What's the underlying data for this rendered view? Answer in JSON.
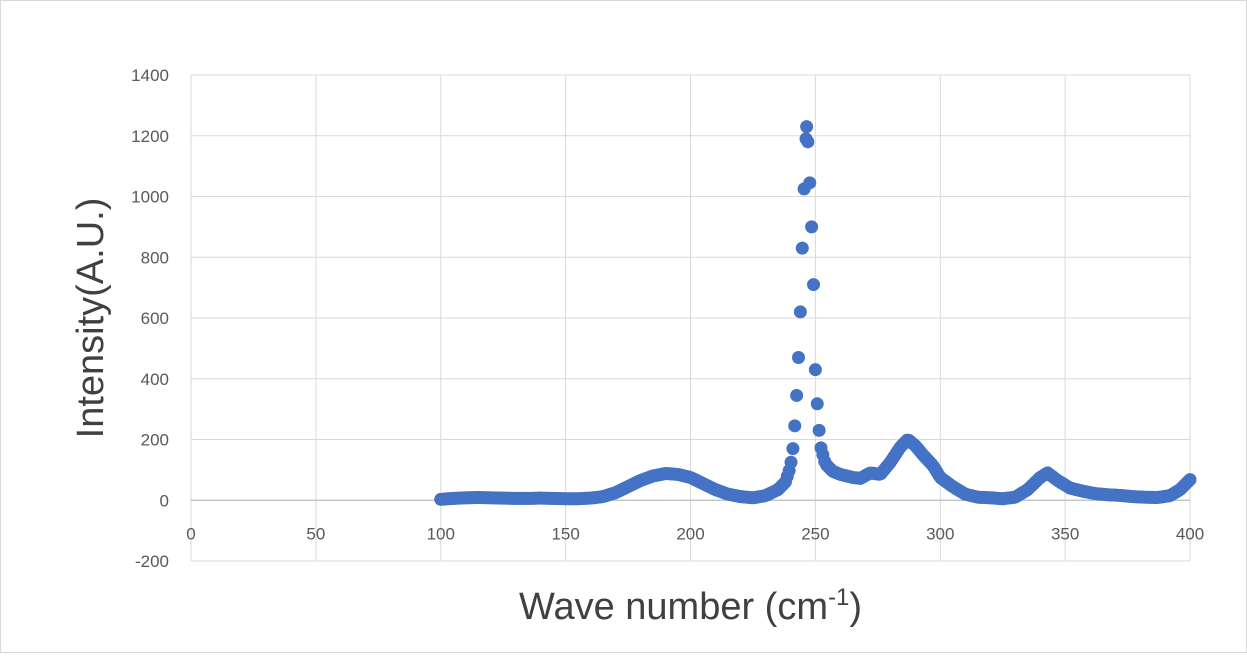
{
  "chart_data": {
    "type": "scatter",
    "title": "",
    "xlabel": {
      "base": "Wave number (cm",
      "sup": "-1",
      "end": ")"
    },
    "ylabel": "Intensity(A.U.)",
    "xlim": [
      0,
      400
    ],
    "ylim": [
      -200,
      1400
    ],
    "xticks": [
      0,
      50,
      100,
      150,
      200,
      250,
      300,
      350,
      400
    ],
    "yticks": [
      -200,
      0,
      200,
      400,
      600,
      800,
      1000,
      1200,
      1400
    ],
    "grid": true,
    "legend": "none",
    "marker_color": "#4472c4",
    "series": [
      {
        "points": [
          [
            100,
            3
          ],
          [
            105,
            6
          ],
          [
            110,
            8
          ],
          [
            115,
            9
          ],
          [
            120,
            8
          ],
          [
            125,
            7
          ],
          [
            130,
            6
          ],
          [
            135,
            6
          ],
          [
            140,
            7
          ],
          [
            145,
            6
          ],
          [
            150,
            5
          ],
          [
            155,
            5
          ],
          [
            160,
            7
          ],
          [
            165,
            12
          ],
          [
            170,
            25
          ],
          [
            175,
            45
          ],
          [
            180,
            65
          ],
          [
            185,
            80
          ],
          [
            190,
            88
          ],
          [
            195,
            85
          ],
          [
            200,
            75
          ],
          [
            205,
            55
          ],
          [
            210,
            35
          ],
          [
            215,
            20
          ],
          [
            220,
            12
          ],
          [
            225,
            8
          ],
          [
            230,
            15
          ],
          [
            235,
            35
          ],
          [
            238,
            60
          ],
          [
            240,
            110
          ],
          [
            241,
            170
          ],
          [
            242,
            270
          ],
          [
            243,
            420
          ],
          [
            244,
            620
          ],
          [
            245,
            900
          ],
          [
            246,
            1150
          ],
          [
            246.5,
            1230
          ],
          [
            247,
            1180
          ],
          [
            248,
            1000
          ],
          [
            249,
            800
          ],
          [
            249.5,
            620
          ],
          [
            250,
            430
          ],
          [
            251,
            280
          ],
          [
            252,
            180
          ],
          [
            254,
            120
          ],
          [
            257,
            95
          ],
          [
            260,
            85
          ],
          [
            265,
            75
          ],
          [
            268,
            72
          ],
          [
            272,
            90
          ],
          [
            276,
            85
          ],
          [
            280,
            125
          ],
          [
            284,
            175
          ],
          [
            287,
            200
          ],
          [
            290,
            180
          ],
          [
            293,
            150
          ],
          [
            297,
            115
          ],
          [
            300,
            75
          ],
          [
            305,
            45
          ],
          [
            310,
            20
          ],
          [
            315,
            10
          ],
          [
            320,
            8
          ],
          [
            325,
            5
          ],
          [
            330,
            10
          ],
          [
            335,
            35
          ],
          [
            340,
            75
          ],
          [
            343,
            90
          ],
          [
            347,
            65
          ],
          [
            352,
            40
          ],
          [
            357,
            30
          ],
          [
            362,
            22
          ],
          [
            367,
            18
          ],
          [
            372,
            16
          ],
          [
            377,
            12
          ],
          [
            382,
            10
          ],
          [
            387,
            9
          ],
          [
            392,
            15
          ],
          [
            396,
            35
          ],
          [
            400,
            68
          ]
        ]
      }
    ]
  }
}
